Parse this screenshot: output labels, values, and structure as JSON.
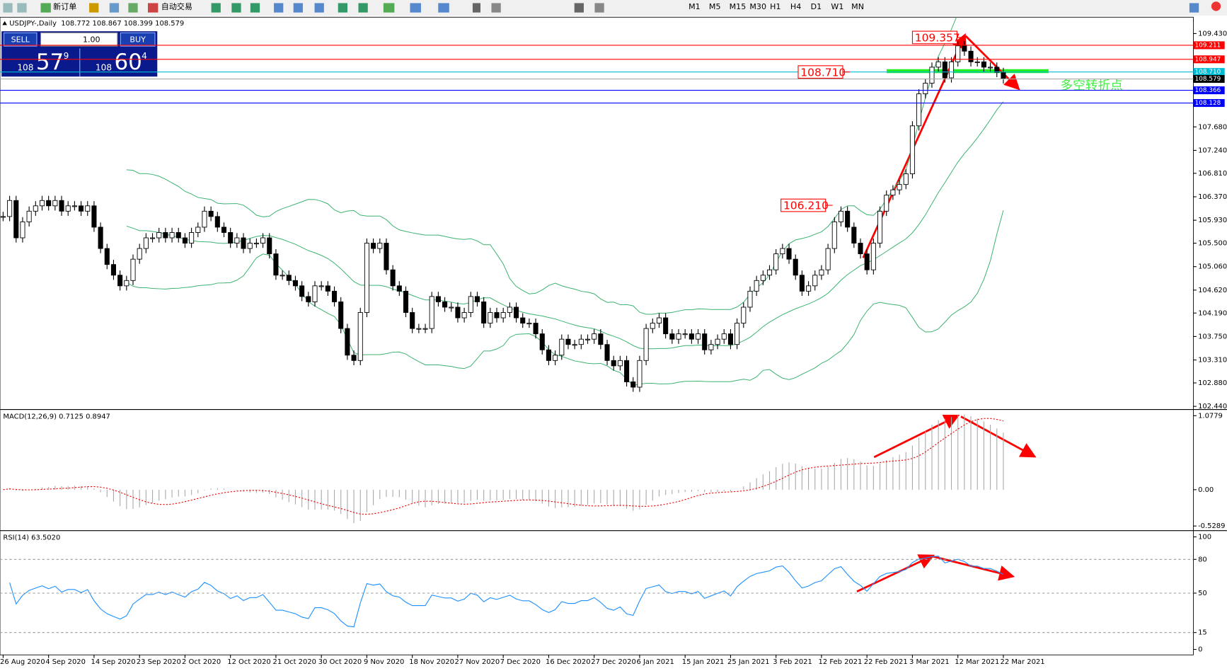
{
  "toolbar": {
    "new_order": "新订单",
    "auto_trading": "自动交易",
    "timeframes": [
      "M1",
      "M5",
      "M15",
      "M30",
      "H1",
      "H4",
      "D1",
      "W1",
      "MN"
    ]
  },
  "trade_panel": {
    "sell": "SELL",
    "buy": "BUY",
    "lots": "1.00",
    "sell_price": [
      "108",
      "57",
      "9"
    ],
    "buy_price": [
      "108",
      "60",
      "4"
    ]
  },
  "chart_data": {
    "type": "candlestick",
    "symbol": "USDJPY-,Daily",
    "ohlc_header": "108.772 108.867 108.399 108.579",
    "x": [
      "26 Aug 2020",
      null,
      null,
      null,
      null,
      null,
      null,
      "4 Sep 2020",
      null,
      null,
      null,
      null,
      null,
      null,
      "14 Sep 2020",
      null,
      null,
      null,
      null,
      null,
      null,
      "23 Sep 2020",
      null,
      null,
      null,
      null,
      null,
      null,
      "2 Oct 2020",
      null,
      null,
      null,
      null,
      null,
      null,
      "12 Oct 2020",
      null,
      null,
      null,
      null,
      null,
      null,
      "21 Oct 2020",
      null,
      null,
      null,
      null,
      null,
      null,
      "30 Oct 2020",
      null,
      null,
      null,
      null,
      null,
      null,
      "9 Nov 2020",
      null,
      null,
      null,
      null,
      null,
      null,
      "18 Nov 2020",
      null,
      null,
      null,
      null,
      null,
      null,
      "27 Nov 2020",
      null,
      null,
      null,
      null,
      null,
      null,
      "7 Dec 2020",
      null,
      null,
      null,
      null,
      null,
      null,
      "16 Dec 2020",
      null,
      null,
      null,
      null,
      null,
      null,
      "27 Dec 2020",
      null,
      null,
      null,
      null,
      null,
      null,
      "6 Jan 2021",
      null,
      null,
      null,
      null,
      null,
      null,
      "15 Jan 2021",
      null,
      null,
      null,
      null,
      null,
      null,
      "25 Jan 2021",
      null,
      null,
      null,
      null,
      null,
      null,
      "3 Feb 2021",
      null,
      null,
      null,
      null,
      null,
      null,
      "12 Feb 2021",
      null,
      null,
      null,
      null,
      null,
      null,
      "22 Feb 2021",
      null,
      null,
      null,
      null,
      null,
      null,
      "3 Mar 2021",
      null,
      null,
      null,
      null,
      null,
      null,
      "12 Mar 2021",
      null,
      null,
      null,
      null,
      null,
      null,
      "22 Mar 2021"
    ],
    "closes": [
      106.0,
      106.3,
      105.6,
      105.9,
      106.1,
      106.2,
      106.3,
      106.2,
      106.3,
      106.1,
      106.2,
      106.2,
      106.1,
      106.2,
      105.8,
      105.4,
      105.1,
      104.9,
      104.7,
      104.8,
      105.2,
      105.4,
      105.6,
      105.6,
      105.7,
      105.6,
      105.7,
      105.6,
      105.5,
      105.7,
      105.8,
      106.1,
      106.0,
      105.8,
      105.7,
      105.5,
      105.6,
      105.4,
      105.5,
      105.5,
      105.6,
      105.3,
      104.9,
      104.9,
      104.8,
      104.7,
      104.5,
      104.4,
      104.7,
      104.7,
      104.6,
      104.4,
      103.9,
      103.4,
      103.3,
      104.2,
      105.5,
      105.4,
      105.5,
      105.0,
      104.7,
      104.6,
      104.2,
      103.9,
      103.9,
      103.9,
      104.5,
      104.4,
      104.3,
      104.3,
      104.1,
      104.2,
      104.5,
      104.4,
      104.0,
      104.2,
      104.1,
      104.2,
      104.3,
      104.1,
      104.0,
      104.0,
      103.8,
      103.5,
      103.3,
      103.4,
      103.7,
      103.6,
      103.6,
      103.7,
      103.7,
      103.8,
      103.6,
      103.3,
      103.2,
      103.3,
      102.9,
      102.8,
      103.3,
      103.9,
      104.0,
      104.1,
      103.8,
      103.7,
      103.8,
      103.8,
      103.7,
      103.8,
      103.5,
      103.6,
      103.7,
      103.8,
      103.6,
      104.0,
      104.3,
      104.6,
      104.8,
      104.9,
      105.0,
      105.3,
      105.4,
      105.2,
      104.9,
      104.6,
      104.7,
      104.9,
      105.0,
      105.4,
      105.9,
      106.1,
      105.8,
      105.5,
      105.3,
      105.0,
      105.5,
      106.1,
      106.4,
      106.5,
      106.6,
      106.8,
      107.7,
      108.3,
      108.5,
      108.8,
      108.9,
      108.6,
      108.9,
      109.2,
      109.1,
      108.9,
      108.9,
      108.8,
      108.8,
      108.7,
      108.579
    ],
    "ylim": [
      102.396,
      109.737
    ],
    "yticks": [
      {
        "value": 109.43,
        "label": "109.430"
      },
      {
        "value": 107.68,
        "label": "107.680"
      },
      {
        "value": 107.24,
        "label": "107.240"
      },
      {
        "value": 106.81,
        "label": "106.810"
      },
      {
        "value": 106.37,
        "label": "106.370"
      },
      {
        "value": 105.93,
        "label": "105.930"
      },
      {
        "value": 105.5,
        "label": "105.500"
      },
      {
        "value": 105.06,
        "label": "105.060"
      },
      {
        "value": 104.62,
        "label": "104.620"
      },
      {
        "value": 104.19,
        "label": "104.190"
      },
      {
        "value": 103.75,
        "label": "103.750"
      },
      {
        "value": 103.31,
        "label": "103.310"
      },
      {
        "value": 102.88,
        "label": "102.880"
      },
      {
        "value": 102.44,
        "label": "102.440"
      }
    ],
    "levels": [
      {
        "value": 109.211,
        "label": "109.211",
        "color": "#ff0000"
      },
      {
        "value": 108.947,
        "label": "108.947",
        "color": "#ff0000"
      },
      {
        "value": 108.71,
        "label": "108.710",
        "color": "#00bcd4"
      },
      {
        "value": 108.579,
        "label": "108.579",
        "color": "#000000"
      },
      {
        "value": 108.366,
        "label": "108.366",
        "color": "#0000ff"
      },
      {
        "value": 108.128,
        "label": "108.128",
        "color": "#0000ff"
      }
    ],
    "annotations": [
      {
        "value": 109.357,
        "label": "109.357"
      },
      {
        "value": 108.71,
        "label": "108.710"
      },
      {
        "value": 106.21,
        "label": "106.210"
      }
    ],
    "turning_point": "多空转折点",
    "macd": {
      "label": "MACD(12,26,9) 0.7125 0.8947",
      "ylim": [
        -0.585,
        1.157
      ],
      "yticks": [
        {
          "value": 1.0779,
          "label": "1.0779"
        },
        {
          "value": 0,
          "label": "0.00"
        },
        {
          "value": -0.5289,
          "label": "-0.5289"
        }
      ]
    },
    "rsi": {
      "label": "RSI(14) 63.5020",
      "ylim": [
        0,
        100
      ],
      "yticks": [
        100,
        80,
        50,
        15,
        0
      ],
      "levels": [
        80,
        50,
        15
      ]
    }
  }
}
